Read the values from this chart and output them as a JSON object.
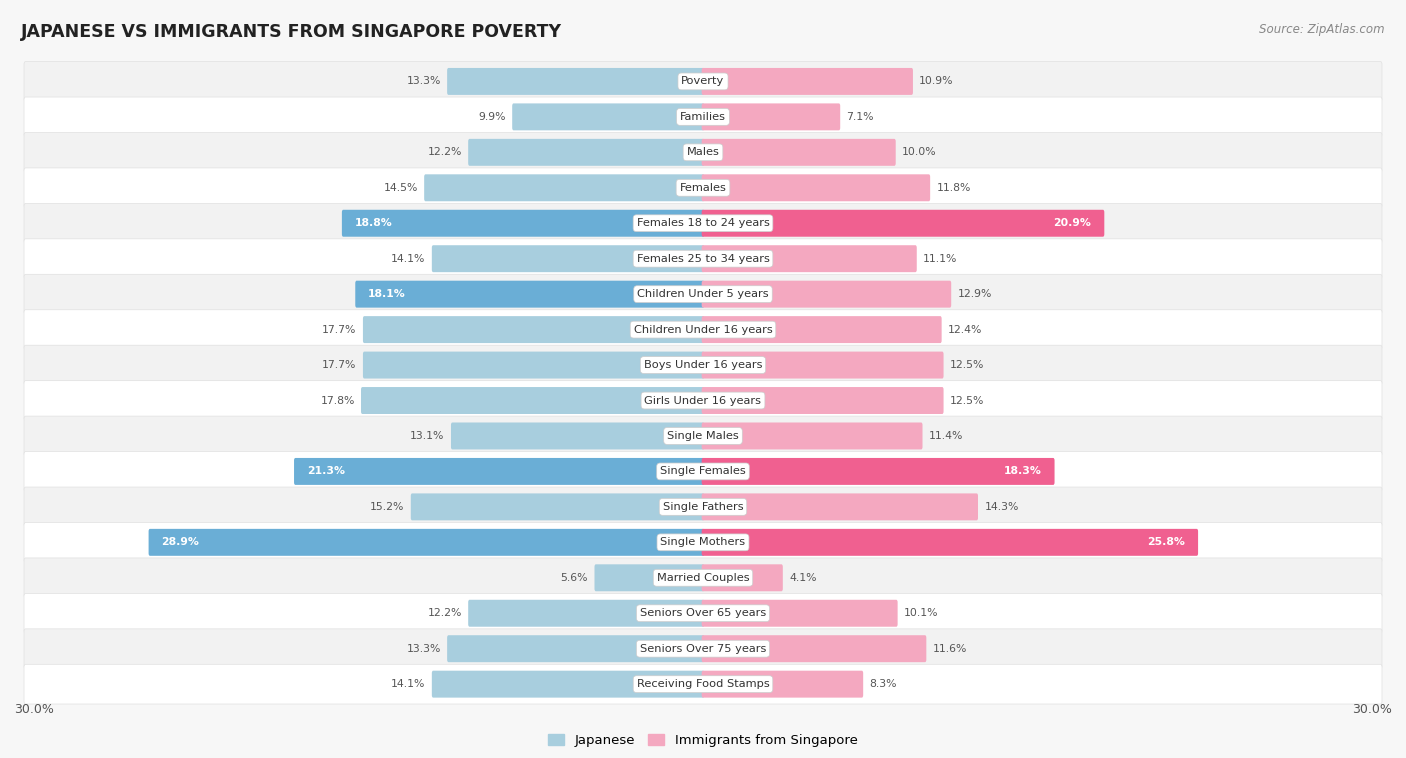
{
  "title": "JAPANESE VS IMMIGRANTS FROM SINGAPORE POVERTY",
  "source": "Source: ZipAtlas.com",
  "categories": [
    "Poverty",
    "Families",
    "Males",
    "Females",
    "Females 18 to 24 years",
    "Females 25 to 34 years",
    "Children Under 5 years",
    "Children Under 16 years",
    "Boys Under 16 years",
    "Girls Under 16 years",
    "Single Males",
    "Single Females",
    "Single Fathers",
    "Single Mothers",
    "Married Couples",
    "Seniors Over 65 years",
    "Seniors Over 75 years",
    "Receiving Food Stamps"
  ],
  "japanese": [
    13.3,
    9.9,
    12.2,
    14.5,
    18.8,
    14.1,
    18.1,
    17.7,
    17.7,
    17.8,
    13.1,
    21.3,
    15.2,
    28.9,
    5.6,
    12.2,
    13.3,
    14.1
  ],
  "singapore": [
    10.9,
    7.1,
    10.0,
    11.8,
    20.9,
    11.1,
    12.9,
    12.4,
    12.5,
    12.5,
    11.4,
    18.3,
    14.3,
    25.8,
    4.1,
    10.1,
    11.6,
    8.3
  ],
  "japanese_color_normal": "#A8CEDE",
  "japanese_color_highlight": "#6AAED6",
  "singapore_color_normal": "#F4A8C0",
  "singapore_color_highlight": "#F06090",
  "highlight_threshold": 18.0,
  "x_max": 30.0,
  "legend_japanese": "Japanese",
  "legend_singapore": "Immigrants from Singapore",
  "bg_color": "#f7f7f7",
  "row_bg_even": "#f2f2f2",
  "row_bg_odd": "#ffffff"
}
